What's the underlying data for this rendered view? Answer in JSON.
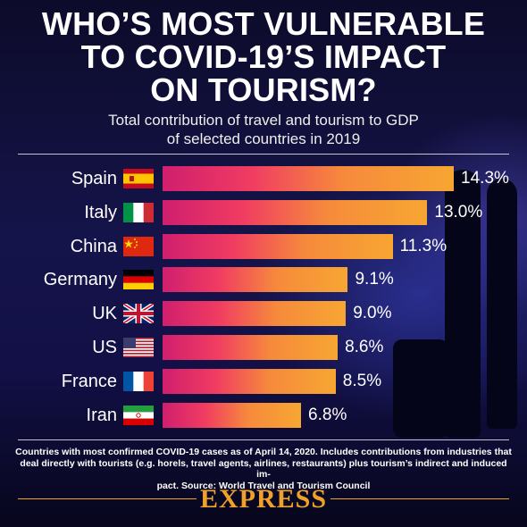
{
  "headline": [
    "WHO’S MOST VULNERABLE",
    "TO COVID-19’S IMPACT",
    "ON TOURISM?"
  ],
  "subtitle": [
    "Total contribution of travel and tourism to GDP",
    "of selected countries in 2019"
  ],
  "chart_data": {
    "type": "bar",
    "orientation": "horizontal",
    "categories": [
      "Spain",
      "Italy",
      "China",
      "Germany",
      "UK",
      "US",
      "France",
      "Iran"
    ],
    "values": [
      14.3,
      13.0,
      11.3,
      9.1,
      9.0,
      8.6,
      8.5,
      6.8
    ],
    "value_labels": [
      "14.3%",
      "13.0%",
      "11.3%",
      "9.1%",
      "9.0%",
      "8.6%",
      "8.5%",
      "6.8%"
    ],
    "unit": "%",
    "flag_icons": [
      "spain-flag-icon",
      "italy-flag-icon",
      "china-flag-icon",
      "germany-flag-icon",
      "uk-flag-icon",
      "us-flag-icon",
      "france-flag-icon",
      "iran-flag-icon"
    ],
    "bar_gradient": [
      "#cf1f6e",
      "#f03b62",
      "#f68a3c",
      "#f7a632"
    ],
    "grid": false,
    "legend": "none"
  },
  "footnote": [
    "Countries with most confirmed COVID-19 cases as of April 14, 2020. Includes contributions from industries that",
    "deal directly with tourists (e.g. horels, travel agents, airlines, restaurants) plus tourism’s indirect and induced im-",
    "pact. Source: World Travel and Tourism Council"
  ],
  "brand": "EXPRESS",
  "colors": {
    "background": "#121046",
    "brand": "#f0a12a",
    "text": "#ffffff"
  }
}
